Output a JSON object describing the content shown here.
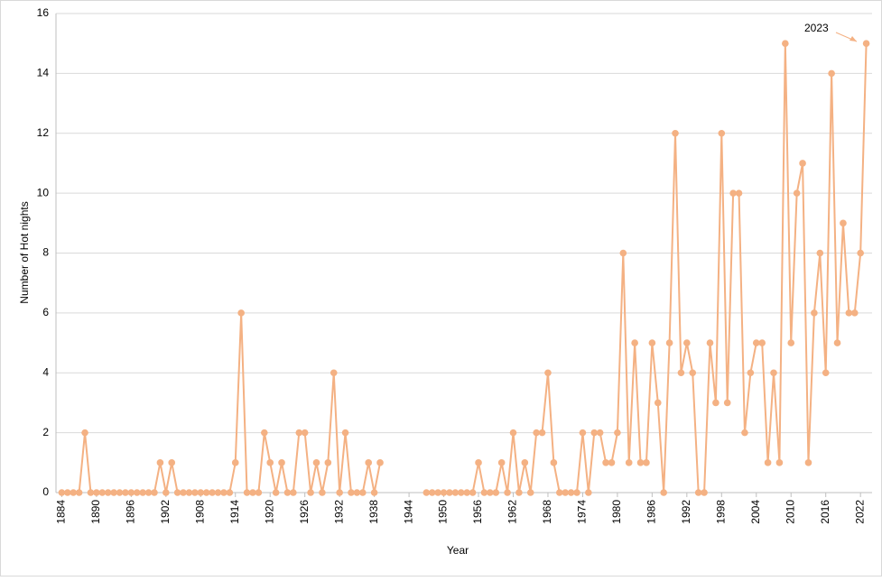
{
  "chart_data": {
    "type": "line",
    "x_label": "Year",
    "y_label": "Number of Hot nights",
    "annotation": "2023",
    "x": [
      1884,
      1885,
      1886,
      1887,
      1888,
      1889,
      1890,
      1891,
      1892,
      1893,
      1894,
      1895,
      1896,
      1897,
      1898,
      1899,
      1900,
      1901,
      1902,
      1903,
      1904,
      1905,
      1906,
      1907,
      1908,
      1909,
      1910,
      1911,
      1912,
      1913,
      1914,
      1915,
      1916,
      1917,
      1918,
      1919,
      1920,
      1921,
      1922,
      1923,
      1924,
      1925,
      1926,
      1927,
      1928,
      1929,
      1930,
      1931,
      1932,
      1933,
      1934,
      1935,
      1936,
      1937,
      1938,
      1939,
      1940,
      1941,
      1942,
      1943,
      1944,
      1945,
      1946,
      1947,
      1948,
      1949,
      1950,
      1951,
      1952,
      1953,
      1954,
      1955,
      1956,
      1957,
      1958,
      1959,
      1960,
      1961,
      1962,
      1963,
      1964,
      1965,
      1966,
      1967,
      1968,
      1969,
      1970,
      1971,
      1972,
      1973,
      1974,
      1975,
      1976,
      1977,
      1978,
      1979,
      1980,
      1981,
      1982,
      1983,
      1984,
      1985,
      1986,
      1987,
      1988,
      1989,
      1990,
      1991,
      1992,
      1993,
      1994,
      1995,
      1996,
      1997,
      1998,
      1999,
      2000,
      2001,
      2002,
      2003,
      2004,
      2005,
      2006,
      2007,
      2008,
      2009,
      2010,
      2011,
      2012,
      2013,
      2014,
      2015,
      2016,
      2017,
      2018,
      2019,
      2020,
      2021,
      2022,
      2023
    ],
    "series": [
      {
        "color": "#f4b183",
        "values": [
          0,
          0,
          0,
          0,
          2,
          0,
          0,
          0,
          0,
          0,
          0,
          0,
          0,
          0,
          0,
          0,
          0,
          1,
          0,
          1,
          0,
          0,
          0,
          0,
          0,
          0,
          0,
          0,
          0,
          0,
          1,
          6,
          0,
          0,
          0,
          2,
          1,
          0,
          1,
          0,
          0,
          2,
          2,
          0,
          1,
          0,
          1,
          4,
          0,
          2,
          0,
          0,
          0,
          1,
          0,
          1,
          null,
          null,
          null,
          null,
          null,
          null,
          null,
          0,
          0,
          0,
          0,
          0,
          0,
          0,
          0,
          0,
          1,
          0,
          0,
          0,
          1,
          0,
          2,
          0,
          1,
          0,
          2,
          2,
          4,
          1,
          0,
          0,
          0,
          0,
          2,
          0,
          2,
          2,
          1,
          1,
          2,
          8,
          1,
          5,
          1,
          1,
          5,
          3,
          0,
          5,
          12,
          4,
          5,
          4,
          0,
          0,
          5,
          3,
          12,
          3,
          10,
          10,
          2,
          4,
          5,
          5,
          1,
          4,
          1,
          15,
          5,
          10,
          11,
          1,
          6,
          8,
          4,
          14,
          5,
          9,
          6,
          6,
          8,
          15
        ]
      }
    ],
    "xlim": [
      1883,
      2024
    ],
    "xticks": [
      1884,
      1890,
      1896,
      1902,
      1908,
      1914,
      1920,
      1926,
      1932,
      1938,
      1944,
      1950,
      1956,
      1962,
      1968,
      1974,
      1980,
      1986,
      1992,
      1998,
      2004,
      2010,
      2016,
      2022
    ],
    "ylim": [
      0,
      16
    ],
    "yticks": [
      0,
      2,
      4,
      6,
      8,
      10,
      12,
      14,
      16
    ],
    "grid": true
  }
}
